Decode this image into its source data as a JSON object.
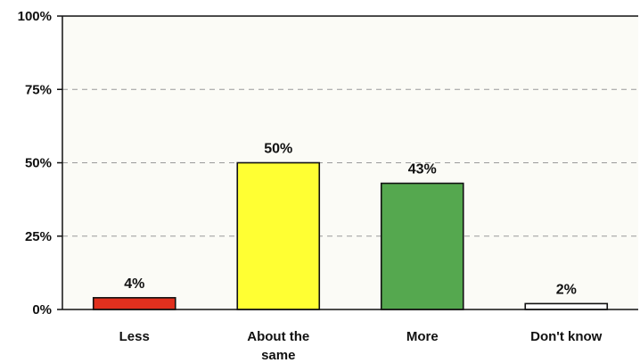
{
  "chart_data": {
    "type": "bar",
    "categories": [
      "Less",
      "About the same",
      "More",
      "Don't know"
    ],
    "category_lines": [
      [
        "Less"
      ],
      [
        "About the",
        "same"
      ],
      [
        "More"
      ],
      [
        "Don't know"
      ]
    ],
    "values": [
      4,
      50,
      43,
      2
    ],
    "data_labels": [
      "4%",
      "50%",
      "43%",
      "2%"
    ],
    "bar_colors": [
      "#e0301e",
      "#ffff33",
      "#55a84f",
      "#ffffff"
    ],
    "ylim": [
      0,
      100
    ],
    "yticks": [
      0,
      25,
      50,
      75,
      100
    ],
    "ytick_labels": [
      "0%",
      "25%",
      "50%",
      "75%",
      "100%"
    ],
    "grid": "dashed horizontal",
    "title": "",
    "xlabel": "",
    "ylabel": ""
  }
}
